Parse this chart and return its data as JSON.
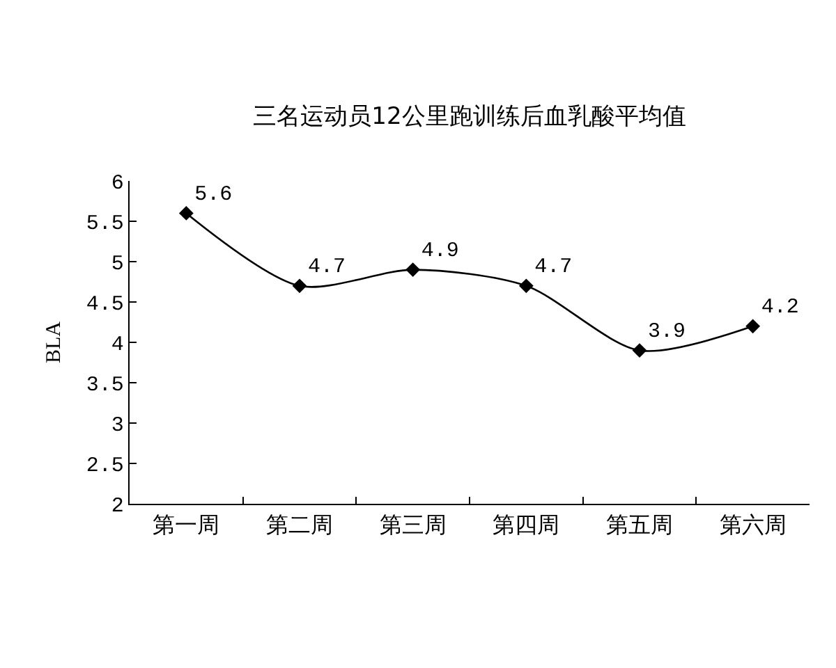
{
  "chart_data": {
    "type": "line",
    "title": "三名运动员12公里跑训练后血乳酸平均值",
    "ylabel": "BLA",
    "categories": [
      "第一周",
      "第二周",
      "第三周",
      "第四周",
      "第五周",
      "第六周"
    ],
    "values": [
      5.6,
      4.7,
      4.9,
      4.7,
      3.9,
      4.2
    ],
    "color": "#000000",
    "ylim": [
      2,
      6
    ],
    "yticks": [
      2,
      2.5,
      3,
      3.5,
      4,
      4.5,
      5,
      5.5,
      6
    ],
    "grid": false,
    "marker": "diamond",
    "line_style": "solid",
    "data_labels": true
  }
}
